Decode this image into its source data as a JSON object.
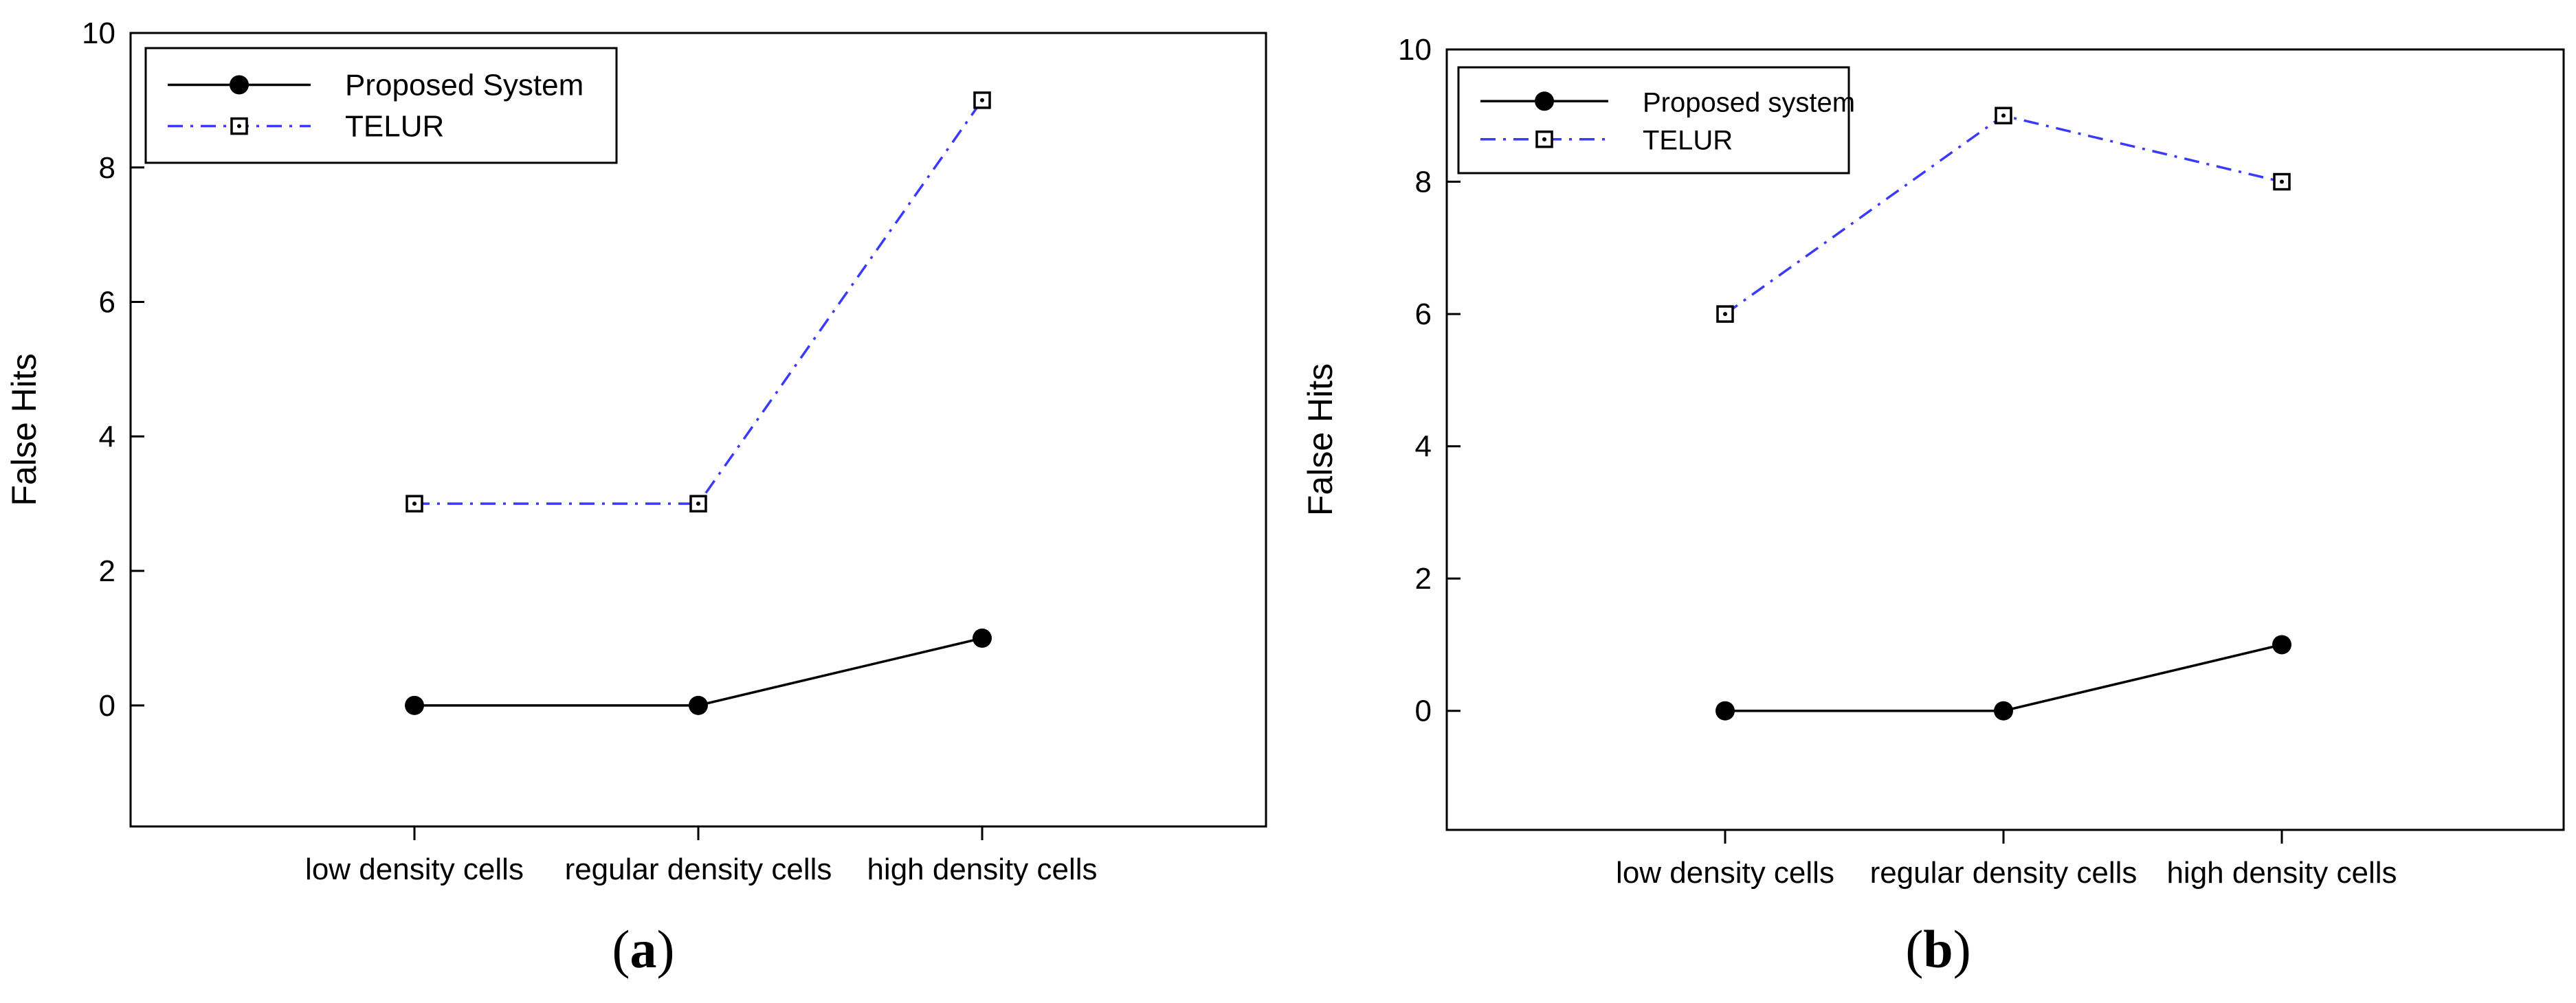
{
  "chart_data": [
    {
      "type": "line",
      "panel_label": "a",
      "title": "",
      "xlabel": "",
      "ylabel": "False Hits",
      "categories": [
        "low density cells",
        "regular density cells",
        "high density cells"
      ],
      "ylim": [
        -1.8,
        10
      ],
      "yticks": [
        0,
        2,
        4,
        6,
        8,
        10
      ],
      "grid": false,
      "legend_position": "top-left",
      "series": [
        {
          "name": "Proposed System",
          "values": [
            0,
            0,
            1
          ],
          "color": "#000000",
          "style": "solid",
          "marker": "filled-circle"
        },
        {
          "name": "TELUR",
          "values": [
            3,
            3,
            9
          ],
          "color": "#3a3aff",
          "style": "dash-dot",
          "marker": "dotted-square"
        }
      ]
    },
    {
      "type": "line",
      "panel_label": "b",
      "title": "",
      "xlabel": "",
      "ylabel": "False Hits",
      "categories": [
        "low density cells",
        "regular density cells",
        "high density cells"
      ],
      "ylim": [
        -1.8,
        10
      ],
      "yticks": [
        0,
        2,
        4,
        6,
        8,
        10
      ],
      "grid": false,
      "legend_position": "top-left",
      "series": [
        {
          "name": "Proposed system",
          "values": [
            0,
            0,
            1
          ],
          "color": "#000000",
          "style": "solid",
          "marker": "filled-circle"
        },
        {
          "name": "TELUR",
          "values": [
            6,
            9,
            8
          ],
          "color": "#3a3aff",
          "style": "dash-dot",
          "marker": "dotted-square"
        }
      ]
    }
  ]
}
